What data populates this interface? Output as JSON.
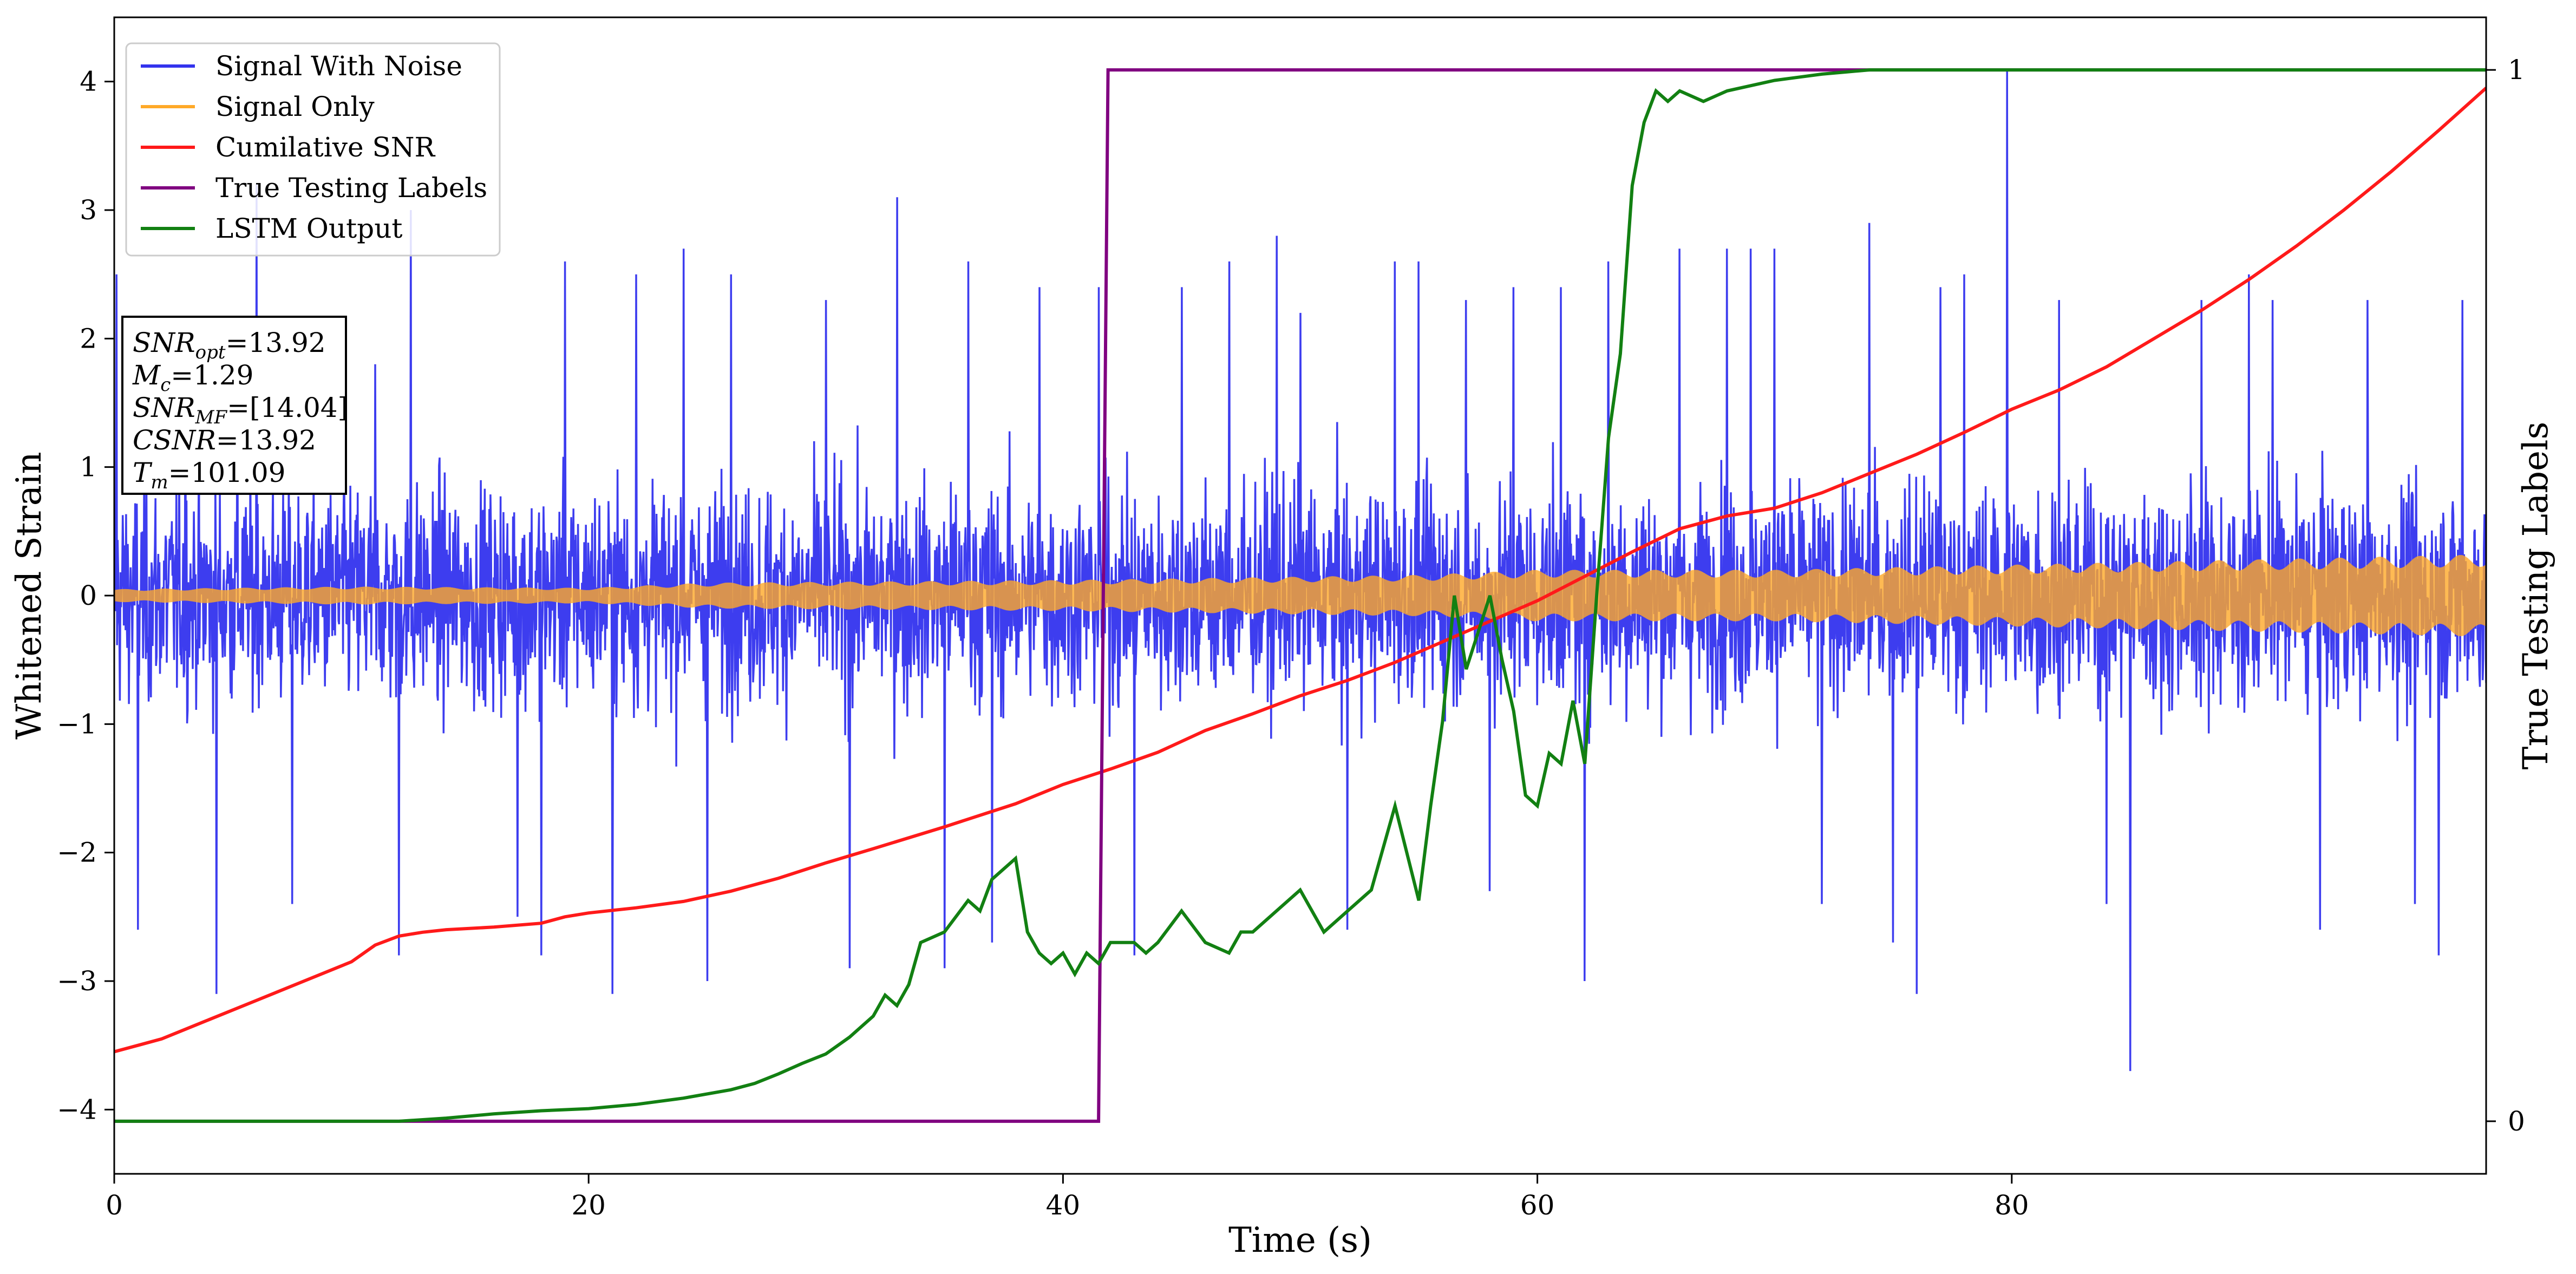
{
  "chart_data": {
    "type": "line",
    "xlabel": "Time (s)",
    "ylabel": "Whitened Strain",
    "y2label": "True Testing Labels",
    "xlim": [
      0,
      100
    ],
    "ylim": [
      -4.5,
      4.5
    ],
    "y2lim": [
      -0.05,
      1.05
    ],
    "xticks": [
      0,
      20,
      40,
      60,
      80
    ],
    "yticks": [
      -4,
      -3,
      -2,
      -1,
      0,
      1,
      2,
      3,
      4
    ],
    "y2ticks": [
      0,
      1
    ],
    "grid": false,
    "legend": {
      "placement": "upper-left",
      "entries": [
        {
          "label": "Signal With Noise",
          "color": "#3333ee"
        },
        {
          "label": "Signal Only",
          "color": "#ffa928"
        },
        {
          "label": "Cumilative SNR",
          "color": "#ff1a1a"
        },
        {
          "label": "True Testing Labels",
          "color": "#800080"
        },
        {
          "label": "LSTM Output",
          "color": "#128012"
        }
      ]
    },
    "annotation": {
      "lines": [
        {
          "main": "SNR",
          "sub": "opt",
          "value": "=13.92"
        },
        {
          "main": "M",
          "sub": "c",
          "value": "=1.29"
        },
        {
          "main": "SNR",
          "sub": "MF",
          "value": "=[14.04]"
        },
        {
          "main": "CSNR",
          "sub": "",
          "value": "=13.92"
        },
        {
          "main": "T",
          "sub": "m",
          "value": "=101.09"
        }
      ]
    },
    "series": [
      {
        "name": "Signal With Noise",
        "color": "#3333ee",
        "description_values": {
          "typical_band": [
            -1.4,
            1.5
          ],
          "seed": 7
        },
        "spikes": [
          [
            0.1,
            2.5
          ],
          [
            1.0,
            -2.6
          ],
          [
            3.0,
            1.9
          ],
          [
            4.3,
            -3.1
          ],
          [
            5.2,
            2.1
          ],
          [
            6.0,
            3.2
          ],
          [
            7.5,
            -2.4
          ],
          [
            11.0,
            1.8
          ],
          [
            12.0,
            -2.8
          ],
          [
            12.5,
            3.0
          ],
          [
            17.0,
            -2.5
          ],
          [
            18.0,
            -2.8
          ],
          [
            19.0,
            2.6
          ],
          [
            21.0,
            -3.1
          ],
          [
            22.0,
            2.5
          ],
          [
            24.0,
            2.7
          ],
          [
            25.0,
            -3.0
          ],
          [
            26.0,
            2.5
          ],
          [
            30.0,
            2.3
          ],
          [
            31.0,
            -2.9
          ],
          [
            33.0,
            3.1
          ],
          [
            35.0,
            -2.9
          ],
          [
            36.0,
            2.6
          ],
          [
            37.0,
            -2.7
          ],
          [
            39.0,
            2.4
          ],
          [
            41.5,
            2.4
          ],
          [
            43.0,
            -2.8
          ],
          [
            45.0,
            2.4
          ],
          [
            47.0,
            2.6
          ],
          [
            49.0,
            2.8
          ],
          [
            50.0,
            2.2
          ],
          [
            52.0,
            -2.6
          ],
          [
            54.0,
            2.6
          ],
          [
            55.0,
            2.6
          ],
          [
            57.0,
            2.3
          ],
          [
            58.0,
            -2.3
          ],
          [
            59.0,
            2.4
          ],
          [
            61.0,
            2.4
          ],
          [
            62.0,
            -3.0
          ],
          [
            63.0,
            2.6
          ],
          [
            66.0,
            2.7
          ],
          [
            68.0,
            2.7
          ],
          [
            69.0,
            2.7
          ],
          [
            70.0,
            2.7
          ],
          [
            72.0,
            -2.4
          ],
          [
            74.0,
            2.9
          ],
          [
            75.0,
            -2.7
          ],
          [
            76.0,
            -3.1
          ],
          [
            77.0,
            2.4
          ],
          [
            78.0,
            2.5
          ],
          [
            79.8,
            4.1
          ],
          [
            82.0,
            2.3
          ],
          [
            84.0,
            -2.4
          ],
          [
            85.0,
            -3.7
          ],
          [
            88.0,
            2.3
          ],
          [
            90.0,
            2.5
          ],
          [
            91.0,
            2.3
          ],
          [
            93.0,
            -2.6
          ],
          [
            95.0,
            2.3
          ],
          [
            97.0,
            -2.4
          ],
          [
            98.0,
            -2.8
          ],
          [
            99.0,
            2.3
          ]
        ]
      },
      {
        "name": "Signal Only",
        "color": "#ffa928",
        "envelope": {
          "x": [
            0,
            10,
            20,
            25,
            40,
            55,
            60,
            70,
            80,
            100
          ],
          "amplitude": [
            0.05,
            0.07,
            0.06,
            0.1,
            0.12,
            0.16,
            0.2,
            0.2,
            0.24,
            0.32
          ]
        }
      },
      {
        "name": "Cumilative SNR",
        "color": "#ff1a1a",
        "x": [
          0,
          1,
          2,
          4,
          6,
          8,
          10,
          11,
          12,
          13,
          14,
          16,
          18,
          19,
          20,
          22,
          24,
          26,
          28,
          30,
          32,
          35,
          38,
          40,
          42,
          44,
          46,
          48,
          50,
          52,
          54,
          56,
          58,
          60,
          62,
          64,
          66,
          68,
          70,
          72,
          74,
          76,
          78,
          80,
          82,
          84,
          86,
          88,
          90,
          92,
          94,
          96,
          98,
          100
        ],
        "y": [
          -3.55,
          -3.5,
          -3.45,
          -3.3,
          -3.15,
          -3.0,
          -2.85,
          -2.72,
          -2.65,
          -2.62,
          -2.6,
          -2.58,
          -2.55,
          -2.5,
          -2.47,
          -2.43,
          -2.38,
          -2.3,
          -2.2,
          -2.08,
          -1.97,
          -1.8,
          -1.62,
          -1.47,
          -1.35,
          -1.22,
          -1.05,
          -0.92,
          -0.78,
          -0.66,
          -0.52,
          -0.36,
          -0.2,
          -0.04,
          0.15,
          0.34,
          0.52,
          0.62,
          0.68,
          0.8,
          0.95,
          1.1,
          1.27,
          1.45,
          1.6,
          1.78,
          2.0,
          2.22,
          2.46,
          2.72,
          3.0,
          3.3,
          3.62,
          3.95
        ]
      },
      {
        "name": "True Testing Labels",
        "color": "#800080",
        "axis": "y2",
        "x": [
          0,
          41.5,
          41.9,
          100
        ],
        "y": [
          0,
          0,
          1,
          1
        ]
      },
      {
        "name": "LSTM Output",
        "color": "#128012",
        "axis": "y2",
        "x": [
          0,
          12,
          14,
          16,
          18,
          20,
          22,
          24,
          26,
          27,
          28,
          29,
          30,
          31,
          32,
          32.5,
          33,
          33.5,
          34,
          34.5,
          35,
          36,
          36.5,
          37,
          38,
          38.5,
          39,
          39.5,
          40,
          40.5,
          41,
          41.5,
          42,
          43,
          43.5,
          44,
          45,
          46,
          47,
          47.5,
          48,
          49,
          50,
          51,
          52,
          53,
          54,
          55,
          55.5,
          56,
          56.5,
          57,
          58,
          58.5,
          59,
          59.5,
          60,
          60.5,
          61,
          61.5,
          62,
          62.5,
          63,
          63.5,
          64,
          64.5,
          65,
          65.5,
          66,
          67,
          68,
          69,
          70,
          71,
          72,
          73,
          74,
          76,
          80,
          100
        ],
        "y": [
          0.0,
          0.0,
          0.003,
          0.007,
          0.01,
          0.012,
          0.016,
          0.022,
          0.03,
          0.036,
          0.045,
          0.055,
          0.064,
          0.08,
          0.1,
          0.12,
          0.11,
          0.13,
          0.17,
          0.175,
          0.18,
          0.21,
          0.2,
          0.23,
          0.25,
          0.18,
          0.16,
          0.15,
          0.16,
          0.14,
          0.16,
          0.15,
          0.17,
          0.17,
          0.16,
          0.17,
          0.2,
          0.17,
          0.16,
          0.18,
          0.18,
          0.2,
          0.22,
          0.18,
          0.2,
          0.22,
          0.3,
          0.21,
          0.3,
          0.38,
          0.5,
          0.43,
          0.5,
          0.44,
          0.39,
          0.31,
          0.3,
          0.35,
          0.34,
          0.4,
          0.34,
          0.5,
          0.65,
          0.73,
          0.89,
          0.95,
          0.98,
          0.97,
          0.98,
          0.97,
          0.98,
          0.985,
          0.99,
          0.993,
          0.996,
          0.998,
          1.0,
          1.0,
          1.0,
          1.0
        ]
      }
    ]
  }
}
